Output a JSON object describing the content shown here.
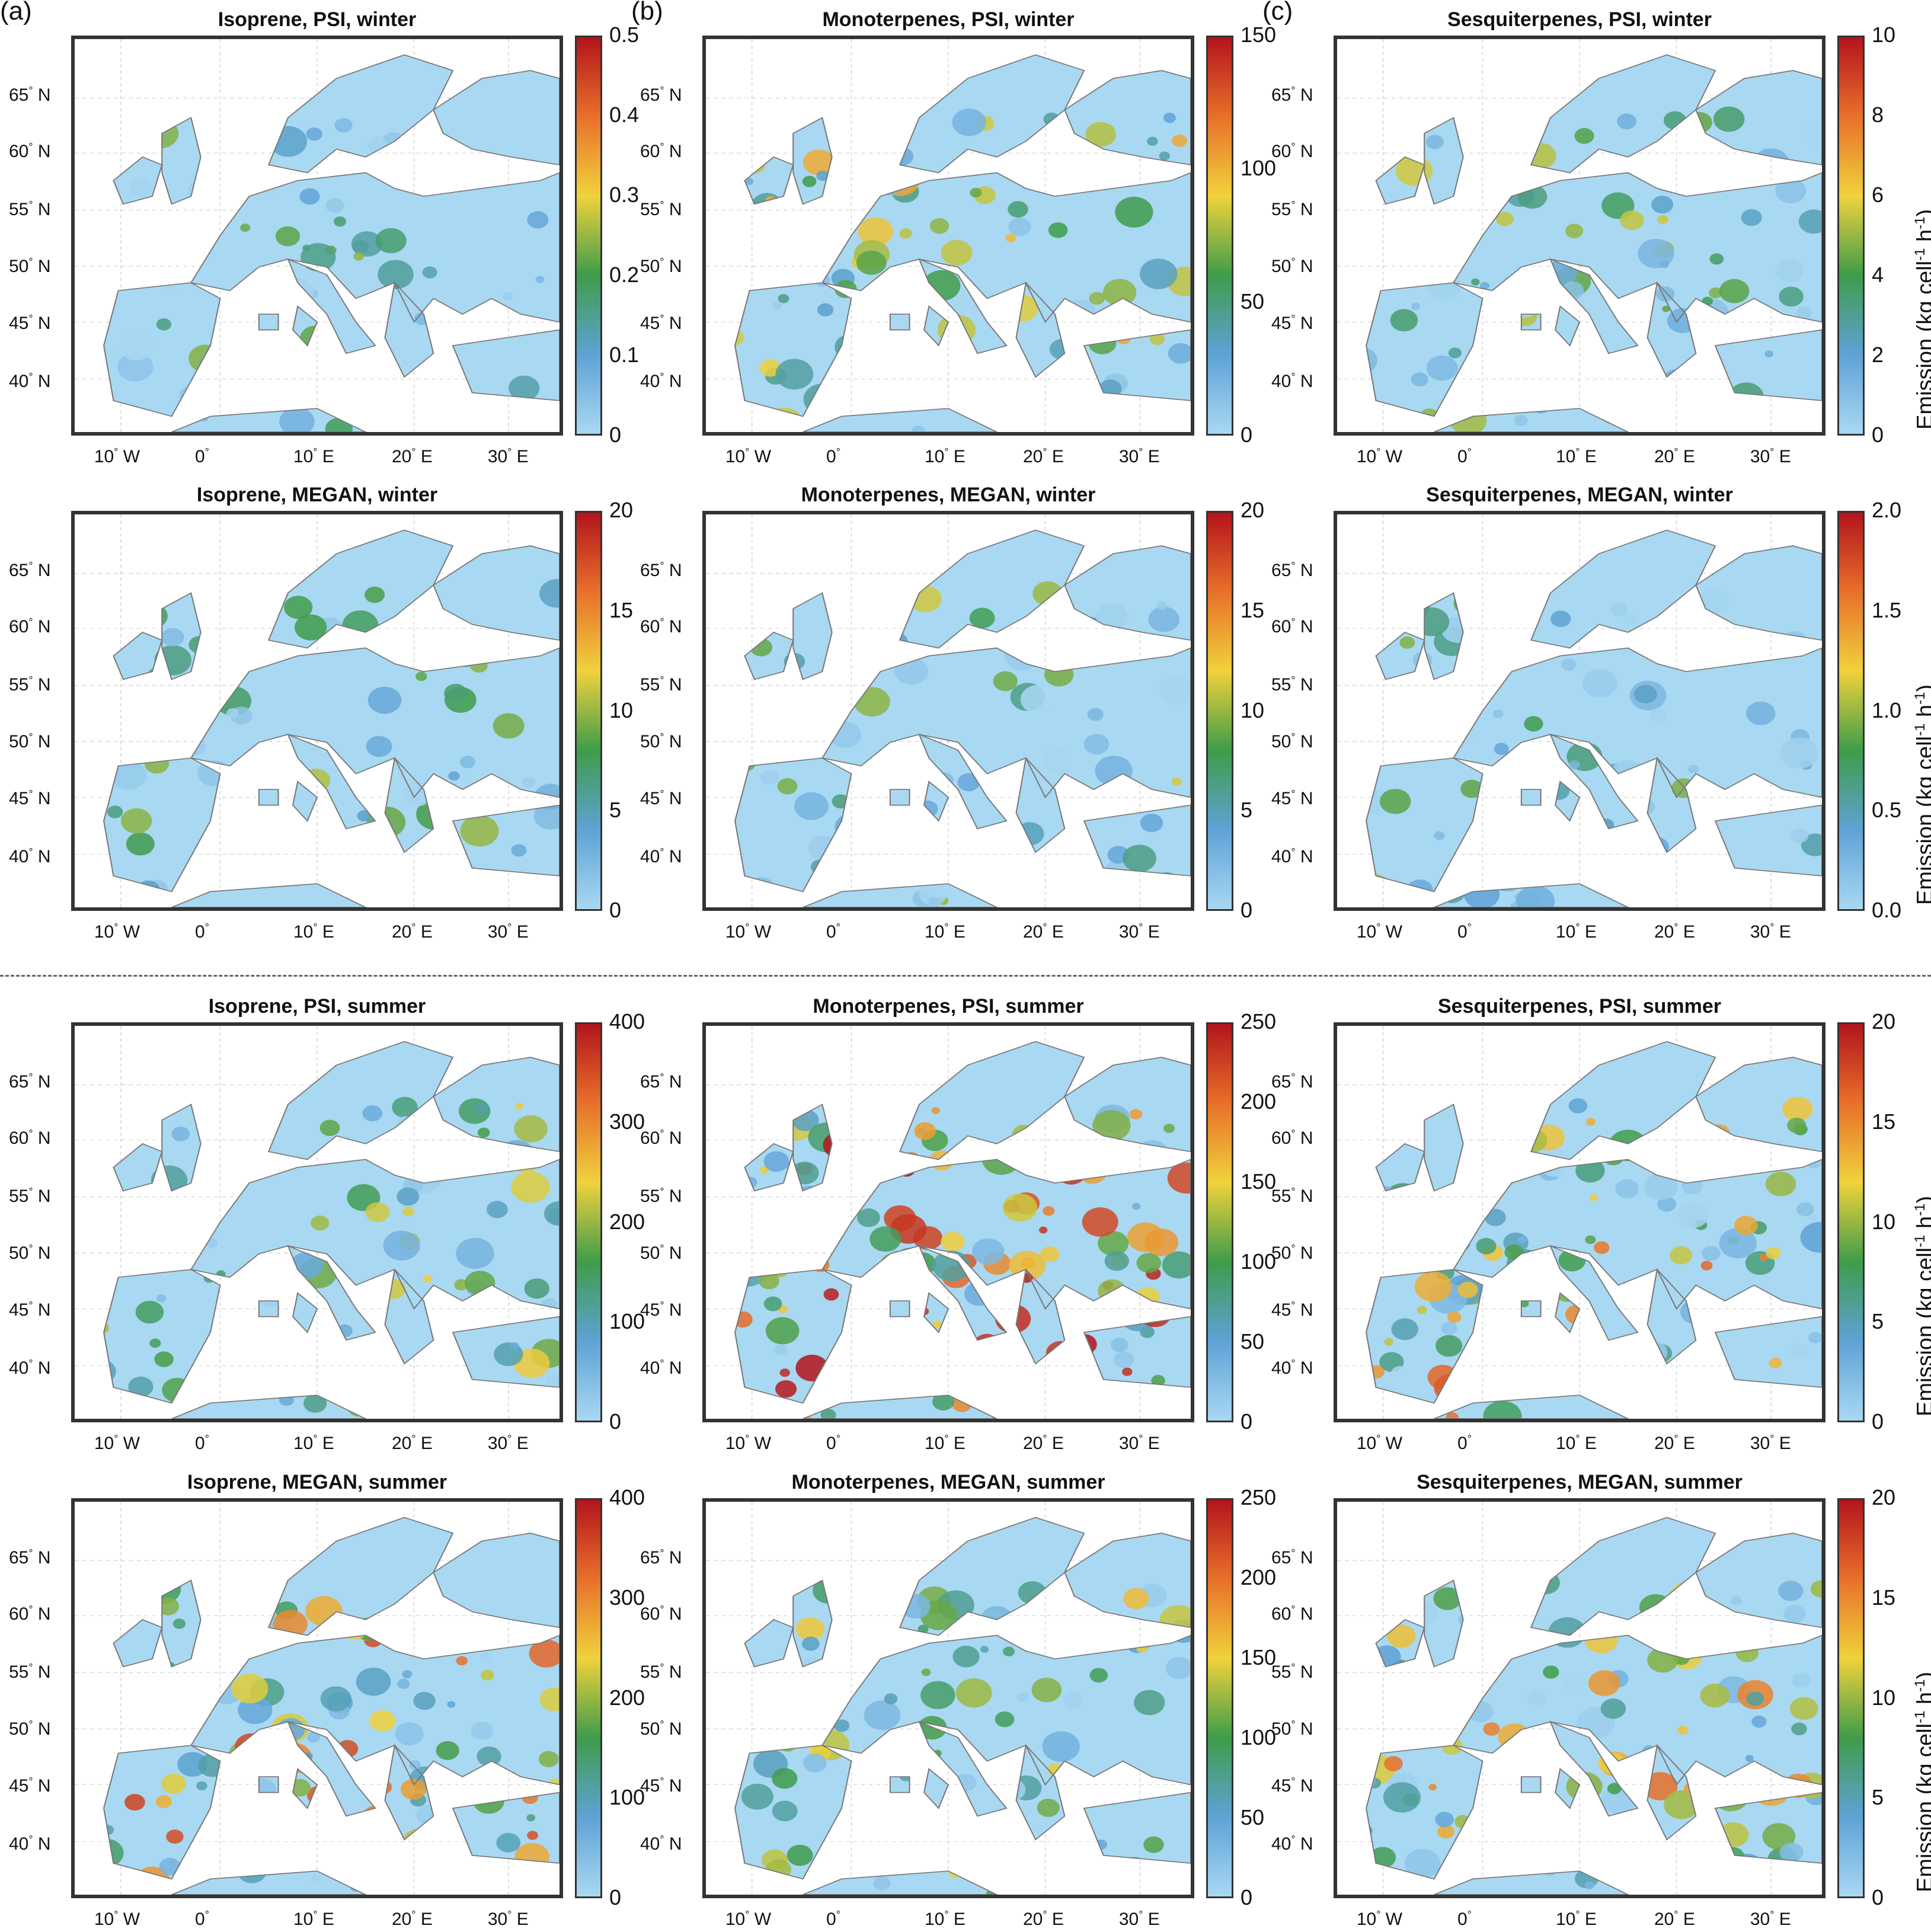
{
  "column_labels": [
    "(a)",
    "(b)",
    "(c)"
  ],
  "lat_ticks": [
    "65",
    "60",
    "55",
    "50",
    "45",
    "40"
  ],
  "lon_ticks": [
    "10",
    "0",
    "10",
    "20",
    "30"
  ],
  "lat_suffix": " N",
  "lon_suffixes": [
    " W",
    "",
    " E",
    " E",
    " E"
  ],
  "degree": "°",
  "colorbar_axis_label": {
    "prefix": "Emission (kg cell",
    "exp1": "-1",
    "mid": " h",
    "exp2": "-1",
    "suffix": ")"
  },
  "colormap": [
    "#a9d8f2",
    "#5ea2d6",
    "#3f9c4a",
    "#f0d23c",
    "#e8702a",
    "#b3141c"
  ],
  "panels": [
    {
      "id": "iso-psi-winter",
      "title": "Isoprene, PSI, winter",
      "ticks": [
        "0.5",
        "0.4",
        "0.3",
        "0.2",
        "0.1",
        "0"
      ],
      "ylim": [
        0,
        0.5
      ],
      "intensity": 0.15
    },
    {
      "id": "mono-psi-winter",
      "title": "Monoterpenes, PSI, winter",
      "ticks": [
        "150",
        "100",
        "50",
        "0"
      ],
      "ylim": [
        0,
        150
      ],
      "intensity": 0.35
    },
    {
      "id": "sesq-psi-winter",
      "title": "Sesquiterpenes, PSI, winter",
      "ticks": [
        "10",
        "8",
        "6",
        "4",
        "2",
        "0"
      ],
      "ylim": [
        0,
        10
      ],
      "intensity": 0.3
    },
    {
      "id": "iso-megan-winter",
      "title": "Isoprene, MEGAN, winter",
      "ticks": [
        "20",
        "15",
        "10",
        "5",
        "0"
      ],
      "ylim": [
        0,
        20
      ],
      "intensity": 0.2
    },
    {
      "id": "mono-megan-winter",
      "title": "Monoterpenes, MEGAN, winter",
      "ticks": [
        "20",
        "15",
        "10",
        "5",
        "0"
      ],
      "ylim": [
        0,
        20
      ],
      "intensity": 0.25
    },
    {
      "id": "sesq-megan-winter",
      "title": "Sesquiterpenes, MEGAN, winter",
      "ticks": [
        "2.0",
        "1.5",
        "1.0",
        "0.5",
        "0.0"
      ],
      "ylim": [
        0,
        2.0
      ],
      "intensity": 0.2
    },
    {
      "id": "iso-psi-summer",
      "title": "Isoprene, PSI, summer",
      "ticks": [
        "400",
        "300",
        "200",
        "100",
        "0"
      ],
      "ylim": [
        0,
        400
      ],
      "intensity": 0.3
    },
    {
      "id": "mono-psi-summer",
      "title": "Monoterpenes, PSI, summer",
      "ticks": [
        "250",
        "200",
        "150",
        "100",
        "50",
        "0"
      ],
      "ylim": [
        0,
        250
      ],
      "intensity": 0.7
    },
    {
      "id": "sesq-psi-summer",
      "title": "Sesquiterpenes, PSI, summer",
      "ticks": [
        "20",
        "15",
        "10",
        "5",
        "0"
      ],
      "ylim": [
        0,
        20
      ],
      "intensity": 0.5
    },
    {
      "id": "iso-megan-summer",
      "title": "Isoprene, MEGAN, summer",
      "ticks": [
        "400",
        "300",
        "200",
        "100",
        "0"
      ],
      "ylim": [
        0,
        400
      ],
      "intensity": 0.55
    },
    {
      "id": "mono-megan-summer",
      "title": "Monoterpenes, MEGAN, summer",
      "ticks": [
        "250",
        "200",
        "150",
        "100",
        "50",
        "0"
      ],
      "ylim": [
        0,
        250
      ],
      "intensity": 0.3
    },
    {
      "id": "sesq-megan-summer",
      "title": "Sesquiterpenes, MEGAN, summer",
      "ticks": [
        "20",
        "15",
        "10",
        "5",
        "0"
      ],
      "ylim": [
        0,
        20
      ],
      "intensity": 0.45
    }
  ]
}
